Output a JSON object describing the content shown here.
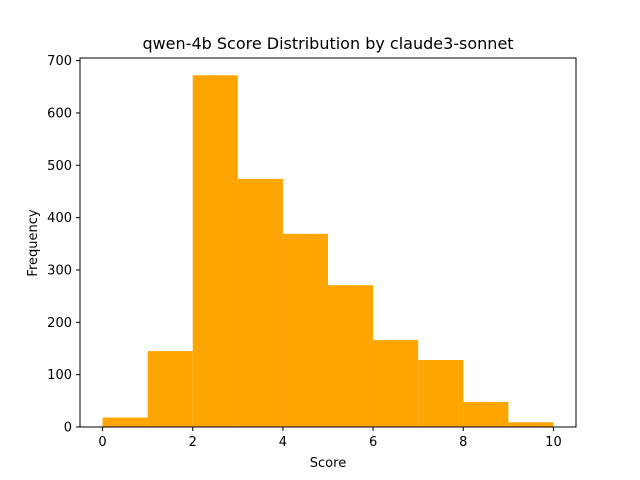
{
  "chart_data": {
    "type": "bar",
    "title": "qwen-4b Score Distribution by claude3-sonnet",
    "xlabel": "Score",
    "ylabel": "Frequency",
    "bin_edges": [
      0,
      1,
      2,
      3,
      4,
      5,
      6,
      7,
      8,
      9,
      10
    ],
    "values": [
      18,
      145,
      672,
      474,
      369,
      271,
      166,
      128,
      48,
      9
    ],
    "xlim": [
      -0.5,
      10.5
    ],
    "ylim": [
      0,
      705
    ],
    "xticks": [
      0,
      2,
      4,
      6,
      8,
      10
    ],
    "yticks": [
      0,
      100,
      200,
      300,
      400,
      500,
      600,
      700
    ],
    "bar_color": "#ffa500",
    "grid": false,
    "legend": "none"
  }
}
